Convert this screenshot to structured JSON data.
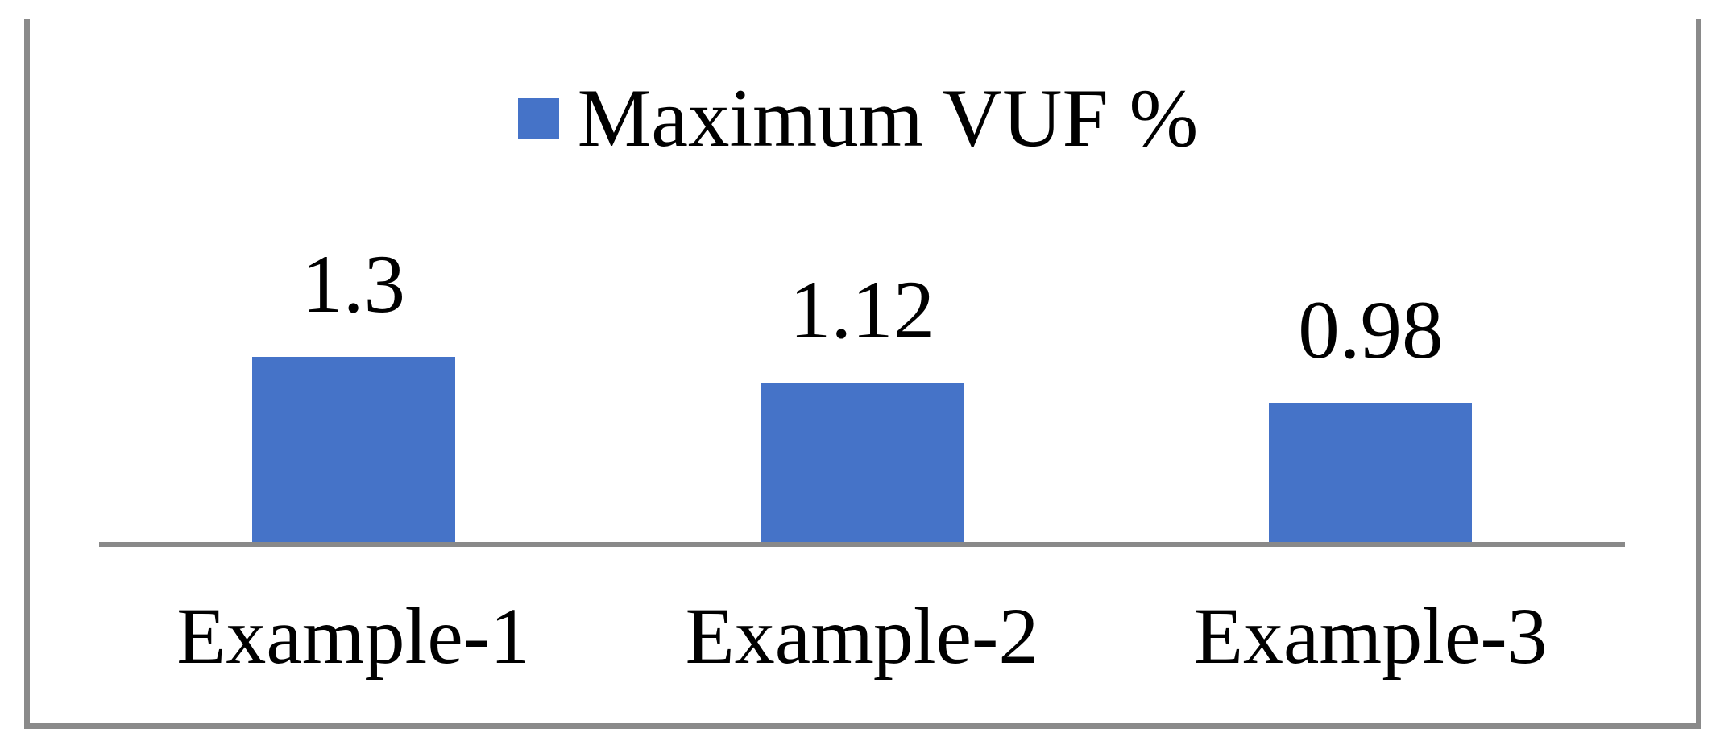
{
  "chart_data": {
    "type": "bar",
    "title": "",
    "xlabel": "",
    "ylabel": "",
    "categories": [
      "Example-1",
      "Example-2",
      "Example-3"
    ],
    "series": [
      {
        "name": "Maximum VUF %",
        "values": [
          1.3,
          1.12,
          0.98
        ]
      }
    ],
    "data_labels": [
      "1.3",
      "1.12",
      "0.98"
    ],
    "legend": {
      "entries": [
        "Maximum VUF %"
      ],
      "position": "top-center"
    },
    "ylim": [
      0,
      1.4
    ],
    "grid": false,
    "colors": {
      "bar": "#4573C8",
      "axis": "#898989",
      "border": "#8A8A8A",
      "text": "#000000"
    }
  }
}
